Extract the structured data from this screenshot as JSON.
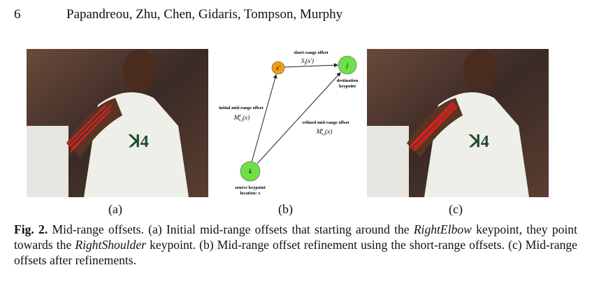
{
  "header": {
    "page_number": "6",
    "authors": "Papandreou, Zhu, Chen, Gidaris, Tompson, Murphy"
  },
  "subfigures": [
    "(a)",
    "(b)",
    "(c)"
  ],
  "diagram": {
    "nodes": [
      {
        "label": "x'"
      },
      {
        "label": "j",
        "caption": [
          "destination",
          "keypoint"
        ]
      },
      {
        "label": "k",
        "caption": [
          "source keypoint",
          "location: x"
        ]
      }
    ],
    "edges": [
      {
        "label": "short-range offset",
        "symbol": "S",
        "sub": "j",
        "arg": "(x')"
      },
      {
        "label": "initial mid-range offset",
        "symbol": "M",
        "sup": "0",
        "sub": "k,j",
        "arg": "(x)"
      },
      {
        "label": "refined mid-range offset",
        "symbol": "M",
        "sup": "1",
        "sub": "k,j",
        "arg": "(x)"
      }
    ]
  },
  "caption": {
    "label": "Fig. 2.",
    "segments": [
      "Mid-range offsets. (a) Initial mid-range offsets that starting around the ",
      "RightElbow",
      " keypoint, they point towards the ",
      "RightShoulder",
      " keypoint. (b) Mid-range offset refinement using the short-range offsets. (c) Mid-range offsets after refinements."
    ]
  }
}
